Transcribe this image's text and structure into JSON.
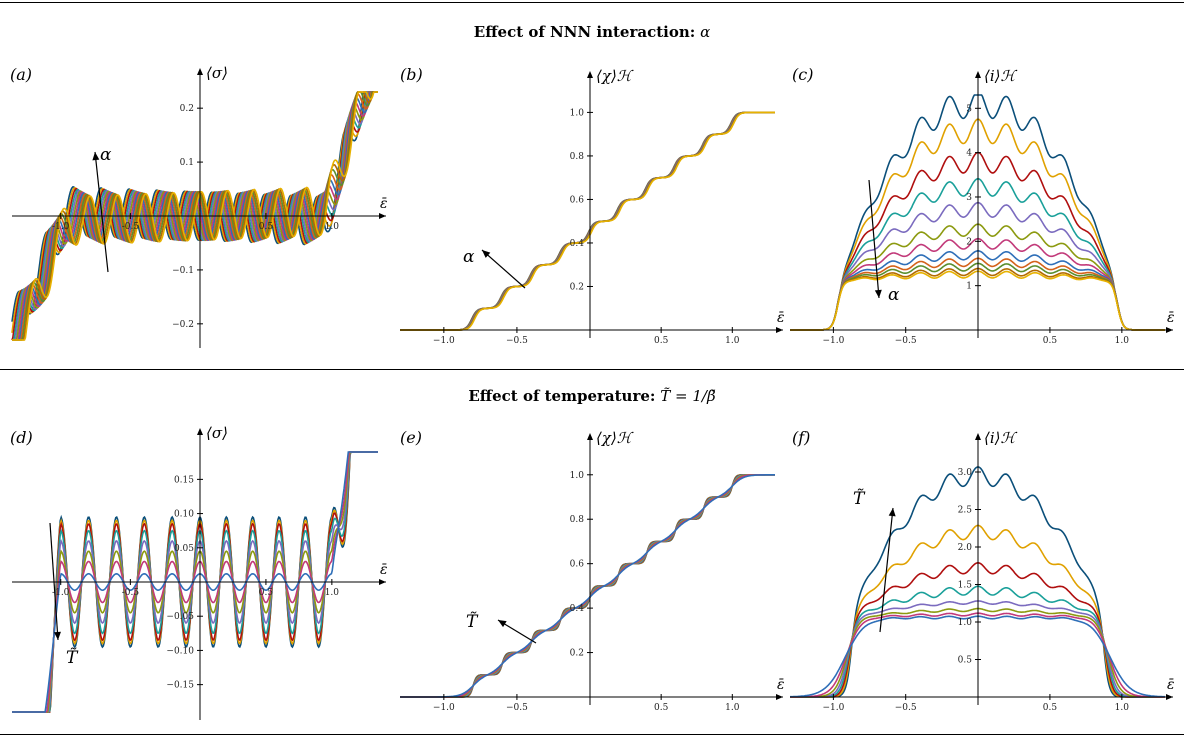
{
  "sections": [
    {
      "title_bold": "Effect of NNN interaction:",
      "title_math": "α"
    },
    {
      "title_bold": "Effect of temperature:",
      "title_math": "T̃ = 1/β̃"
    }
  ],
  "colors": [
    "#0b4f7a",
    "#e0a100",
    "#b00f0f",
    "#1aa09a",
    "#7b6bbf",
    "#8c9a10",
    "#c23a7a",
    "#2f6fb8",
    "#d4621a",
    "#5a8e2e",
    "#b36b00",
    "#e7b200"
  ],
  "chart_data": [
    {
      "panel": "(a)",
      "type": "line",
      "ylabel": "⟨σ⟩",
      "xlabel": "ε̄",
      "xlim": [
        -1.35,
        1.35
      ],
      "ylim": [
        -0.23,
        0.23
      ],
      "xticks": [
        -1.0,
        -0.5,
        0.5,
        1.0
      ],
      "xtick_labels": [
        "-1.0",
        "-0.5",
        "0.5",
        "1.0"
      ],
      "yticks": [
        -0.2,
        -0.1,
        0.1,
        0.2
      ],
      "ytick_labels": [
        "−0.2",
        "−0.1",
        "0.1",
        "0.2"
      ],
      "arrow_label": "α",
      "series_count": 12,
      "family": "sigma-alpha"
    },
    {
      "panel": "(b)",
      "type": "line",
      "ylabel": "⟨χ⟩ℋ",
      "xlabel": "ε̄",
      "xlim": [
        -1.3,
        1.3
      ],
      "ylim": [
        0,
        1.08
      ],
      "xticks": [
        -1.0,
        -0.5,
        0.5,
        1.0
      ],
      "xtick_labels": [
        "−1.0",
        "−0.5",
        "0.5",
        "1.0"
      ],
      "yticks": [
        0.2,
        0.4,
        0.6,
        0.8,
        1.0
      ],
      "ytick_labels": [
        "0.2",
        "0.4",
        "0.6",
        "0.8",
        "1.0"
      ],
      "arrow_label": "α",
      "series_count": 12,
      "family": "chi-alpha"
    },
    {
      "panel": "(c)",
      "type": "line",
      "ylabel": "⟨i⟩ℋ",
      "xlabel": "ε̄",
      "xlim": [
        -1.3,
        1.3
      ],
      "ylim": [
        0,
        5.3
      ],
      "xticks": [
        -1.0,
        -0.5,
        0.5,
        1.0
      ],
      "xtick_labels": [
        "−1.0",
        "−0.5",
        "0.5",
        "1.0"
      ],
      "yticks": [
        1,
        2,
        3,
        4,
        5
      ],
      "ytick_labels": [
        "1",
        "2",
        "3",
        "4",
        "5"
      ],
      "arrow_label": "α",
      "plateau_heights": [
        5.0,
        4.4,
        3.7,
        3.15,
        2.65,
        2.2,
        1.9,
        1.65,
        1.5,
        1.4,
        1.3,
        1.25
      ],
      "family": "i-alpha"
    },
    {
      "panel": "(d)",
      "type": "line",
      "ylabel": "⟨σ⟩",
      "xlabel": "ε̄",
      "xlim": [
        -1.35,
        1.35
      ],
      "ylim": [
        -0.19,
        0.19
      ],
      "xticks": [
        -1.0,
        -0.5,
        0.5,
        1.0
      ],
      "xtick_labels": [
        "-1.0",
        "-0.5",
        "0.5",
        "1.0"
      ],
      "yticks": [
        -0.15,
        -0.1,
        -0.05,
        0.05,
        0.1,
        0.15
      ],
      "ytick_labels": [
        "−0.15",
        "−0.10",
        "−0.05",
        "0.05",
        "0.10",
        "0.15"
      ],
      "arrow_label": "T̃",
      "amplitudes": [
        0.095,
        0.09,
        0.085,
        0.075,
        0.06,
        0.045,
        0.03,
        0.012
      ],
      "family": "sigma-T"
    },
    {
      "panel": "(e)",
      "type": "line",
      "ylabel": "⟨χ⟩ℋ",
      "xlabel": "ε̄",
      "xlim": [
        -1.3,
        1.3
      ],
      "ylim": [
        0,
        1.08
      ],
      "xticks": [
        -1.0,
        -0.5,
        0.5,
        1.0
      ],
      "xtick_labels": [
        "−1.0",
        "−0.5",
        "0.5",
        "1.0"
      ],
      "yticks": [
        0.2,
        0.4,
        0.6,
        0.8,
        1.0
      ],
      "ytick_labels": [
        "0.2",
        "0.4",
        "0.6",
        "0.8",
        "1.0"
      ],
      "arrow_label": "T̃",
      "series_count": 8,
      "family": "chi-T"
    },
    {
      "panel": "(f)",
      "type": "line",
      "ylabel": "⟨i⟩ℋ",
      "xlabel": "ε̄",
      "xlim": [
        -1.3,
        1.3
      ],
      "ylim": [
        0,
        3.2
      ],
      "xticks": [
        -1.0,
        -0.5,
        0.5,
        1.0
      ],
      "xtick_labels": [
        "−1.0",
        "−0.5",
        "0.5",
        "1.0"
      ],
      "yticks": [
        0.5,
        1.0,
        1.5,
        2.0,
        2.5,
        3.0
      ],
      "ytick_labels": [
        "0.5",
        "1.0",
        "1.5",
        "2.0",
        "2.5",
        "3.0"
      ],
      "arrow_label": "T̃",
      "plateau_heights": [
        2.95,
        2.2,
        1.72,
        1.42,
        1.26,
        1.16,
        1.1,
        1.06
      ],
      "family": "i-T"
    }
  ]
}
